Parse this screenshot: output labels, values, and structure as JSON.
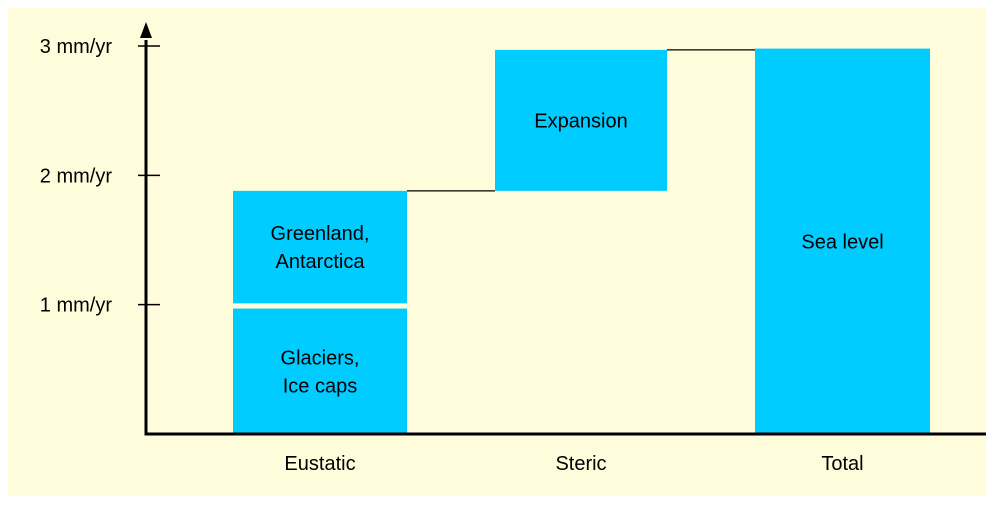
{
  "chart_data": {
    "type": "bar",
    "subtype": "waterfall",
    "title": "",
    "xlabel": "",
    "ylabel": "",
    "categories": [
      "Eustatic",
      "Steric",
      "Total"
    ],
    "ylim": [
      0,
      3
    ],
    "y_ticks": [
      {
        "value": 1,
        "label": "1 mm/yr"
      },
      {
        "value": 2,
        "label": "2 mm/yr"
      },
      {
        "value": 3,
        "label": "3 mm/yr"
      }
    ],
    "segments": [
      {
        "category": "Eustatic",
        "lines": [
          "Glaciers,",
          "Ice caps"
        ],
        "bottom": 0,
        "top": 0.97
      },
      {
        "category": "Eustatic",
        "lines": [
          "Greenland,",
          "Antarctica"
        ],
        "bottom": 1.01,
        "top": 1.88
      },
      {
        "category": "Steric",
        "lines": [
          "Expansion"
        ],
        "bottom": 1.88,
        "top": 2.97
      },
      {
        "category": "Total",
        "lines": [
          "Sea level"
        ],
        "bottom": 0,
        "top": 2.98
      }
    ],
    "connectors": [
      {
        "from": "Eustatic",
        "to": "Steric",
        "value": 1.88
      },
      {
        "from": "Steric",
        "to": "Total",
        "value": 2.97
      }
    ],
    "grid": false,
    "legend": "none",
    "colors": {
      "background": "#FFFCDB",
      "bar": "#00CCFF",
      "axis": "#000000",
      "text": "#000000"
    }
  }
}
